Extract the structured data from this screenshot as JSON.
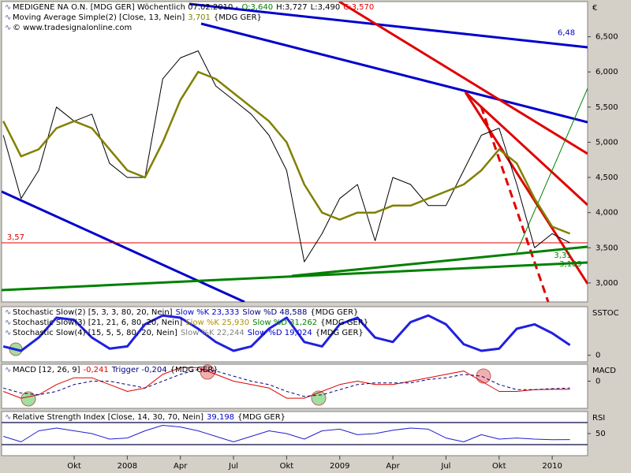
{
  "chart_data": [
    {
      "type": "line",
      "legend_lines": [
        [
          {
            "text": "MEDIGENE NA O.N. [MDG GER]  Wöchentlich 07.02.2010 -",
            "color": "#000000"
          },
          {
            "text": "O:3,640",
            "color": "#008000"
          },
          {
            "text": "H:3,727",
            "color": "#000000"
          },
          {
            "text": "L:3,490",
            "color": "#000000"
          },
          {
            "text": "C:3,570",
            "color": "#e00000"
          }
        ],
        [
          {
            "text": "Moving Average Simple(2) [Close, 13, Nein]",
            "color": "#000000"
          },
          {
            "text": "3,701",
            "color": "#808000"
          },
          {
            "text": "{MDG GER}",
            "color": "#000000"
          }
        ],
        [
          {
            "text": "© www.tradesignalonline.com",
            "color": "#000000"
          }
        ]
      ],
      "axis_label": "€",
      "x": [
        -4,
        -3,
        -2,
        -1,
        0,
        1,
        2,
        3,
        4,
        5,
        6,
        7,
        8,
        9,
        10,
        11,
        12,
        13,
        14,
        15,
        16,
        17,
        18,
        19,
        20,
        21,
        22,
        23,
        24,
        25,
        26,
        27,
        28
      ],
      "xlim": [
        -4.1,
        29.0
      ],
      "xticks": [
        {
          "value": 0,
          "label": "Okt"
        },
        {
          "value": 3,
          "label": "2008"
        },
        {
          "value": 6,
          "label": "Apr"
        },
        {
          "value": 9,
          "label": "Jul"
        },
        {
          "value": 12,
          "label": "Okt"
        },
        {
          "value": 15,
          "label": "2009"
        },
        {
          "value": 18,
          "label": "Apr"
        },
        {
          "value": 21,
          "label": "Jul"
        },
        {
          "value": 24,
          "label": "Okt"
        },
        {
          "value": 27,
          "label": "2010"
        }
      ],
      "ylim": [
        2.73,
        7.0
      ],
      "yticks": [
        {
          "value": 3.0,
          "label": "3,000"
        },
        {
          "value": 3.5,
          "label": "3,500"
        },
        {
          "value": 4.0,
          "label": "4,000"
        },
        {
          "value": 4.5,
          "label": "4,500"
        },
        {
          "value": 5.0,
          "label": "5,000"
        },
        {
          "value": 5.5,
          "label": "5,500"
        },
        {
          "value": 6.0,
          "label": "6,000"
        },
        {
          "value": 6.5,
          "label": "6,500"
        }
      ],
      "series": [
        {
          "name": "Close",
          "color": "#000000",
          "width": 1,
          "values": [
            5.1,
            4.2,
            4.6,
            5.5,
            5.3,
            5.4,
            4.7,
            4.5,
            4.5,
            5.9,
            6.2,
            6.3,
            5.8,
            5.6,
            5.4,
            5.1,
            4.6,
            3.3,
            3.7,
            4.2,
            4.4,
            3.6,
            4.5,
            4.4,
            4.1,
            4.1,
            4.6,
            5.1,
            5.2,
            4.4,
            3.5,
            3.7,
            3.57
          ]
        },
        {
          "name": "Moving Average Simple(2)",
          "color": "#808000",
          "width": 2.5,
          "values": [
            5.3,
            4.8,
            4.9,
            5.2,
            5.3,
            5.2,
            4.9,
            4.6,
            4.5,
            5.0,
            5.6,
            6.0,
            5.9,
            5.7,
            5.5,
            5.3,
            5.0,
            4.4,
            4.0,
            3.9,
            4.0,
            4.0,
            4.1,
            4.1,
            4.2,
            4.3,
            4.4,
            4.6,
            4.9,
            4.7,
            4.2,
            3.8,
            3.7
          ]
        }
      ],
      "annotations": [
        {
          "label": "6,48",
          "value": 6.48,
          "x": 27.3,
          "color": "#0000cc"
        },
        {
          "label": "3,57",
          "value": 3.57,
          "x": -3.8,
          "color": "#e00000",
          "hline": true
        },
        {
          "label": "3,31",
          "value": 3.31,
          "x": 27.1,
          "color": "#008000"
        },
        {
          "label": "3,189",
          "value": 3.189,
          "x": 27.4,
          "color": "#008000"
        }
      ]
    },
    {
      "type": "line",
      "legend_lines": [
        [
          {
            "text": "Stochastic Slow(2) [5, 3, 3, 80, 20, Nein]",
            "color": "#000000"
          },
          {
            "text": "Slow %K 23,333",
            "color": "#0000cc"
          },
          {
            "text": "Slow %D 48,588",
            "color": "#000080"
          },
          {
            "text": "{MDG GER}",
            "color": "#000000"
          }
        ],
        [
          {
            "text": "Stochastic Slow(3) [21, 21, 6, 80, 20, Nein]",
            "color": "#000000"
          },
          {
            "text": "Slow %K 25,930",
            "color": "#b09000"
          },
          {
            "text": "Slow %D 31,262",
            "color": "#008000"
          },
          {
            "text": "{MDG GER}",
            "color": "#000000"
          }
        ],
        [
          {
            "text": "Stochastic Slow(4) [15, 5, 5, 80, 20, Nein]",
            "color": "#000000"
          },
          {
            "text": "Slow %K 22,244",
            "color": "#808080"
          },
          {
            "text": "Slow %D 19,024",
            "color": "#0000cc"
          },
          {
            "text": "{MDG GER}",
            "color": "#000000"
          }
        ]
      ],
      "axis_label": "SSTOC",
      "ylim": [
        -15,
        110
      ],
      "yticks": [
        0
      ],
      "series": [
        {
          "name": "Slow %K",
          "color": "#2020e0",
          "width": 3,
          "values": [
            20,
            10,
            40,
            85,
            80,
            40,
            15,
            20,
            70,
            90,
            85,
            60,
            30,
            10,
            20,
            60,
            85,
            30,
            20,
            70,
            85,
            40,
            30,
            75,
            90,
            70,
            25,
            10,
            15,
            60,
            70,
            50,
            23
          ]
        }
      ]
    },
    {
      "type": "line",
      "legend_lines": [
        [
          {
            "text": "MACD [12, 26, 9]",
            "color": "#000000"
          },
          {
            "text": "-0,241",
            "color": "#e00000"
          },
          {
            "text": "Trigger -0,204",
            "color": "#000080"
          },
          {
            "text": "{MDG GER}",
            "color": "#000000"
          }
        ]
      ],
      "axis_label": "MACD",
      "ylim": [
        -0.8,
        0.5
      ],
      "yticks": [
        0
      ],
      "series": [
        {
          "name": "MACD",
          "color": "#e00000",
          "width": 1,
          "values": [
            -0.3,
            -0.5,
            -0.4,
            -0.1,
            0.1,
            0.1,
            -0.1,
            -0.3,
            -0.2,
            0.2,
            0.4,
            0.4,
            0.2,
            0.0,
            -0.1,
            -0.2,
            -0.5,
            -0.5,
            -0.3,
            -0.1,
            0.0,
            -0.1,
            -0.1,
            0.0,
            0.1,
            0.2,
            0.3,
            0.0,
            -0.3,
            -0.3,
            -0.25,
            -0.24,
            -0.241
          ]
        },
        {
          "name": "Trigger",
          "color": "#000080",
          "width": 1,
          "dash": true,
          "values": [
            -0.2,
            -0.35,
            -0.4,
            -0.3,
            -0.1,
            0.0,
            0.0,
            -0.1,
            -0.2,
            0.0,
            0.2,
            0.35,
            0.3,
            0.15,
            0.0,
            -0.1,
            -0.3,
            -0.45,
            -0.4,
            -0.25,
            -0.1,
            -0.05,
            -0.05,
            -0.05,
            0.05,
            0.1,
            0.2,
            0.15,
            -0.1,
            -0.25,
            -0.25,
            -0.22,
            -0.204
          ]
        }
      ]
    },
    {
      "type": "line",
      "legend_lines": [
        [
          {
            "text": "Relative Strength Index [Close, 14, 30, 70, Nein]",
            "color": "#000000"
          },
          {
            "text": "39,198",
            "color": "#0000cc"
          },
          {
            "text": "{MDG GER}",
            "color": "#000000"
          }
        ]
      ],
      "axis_label": "RSI",
      "ylim": [
        10,
        90
      ],
      "yticks": [
        50
      ],
      "ref_lines": [
        30,
        70
      ],
      "series": [
        {
          "name": "RSI",
          "color": "#2020d0",
          "width": 1,
          "values": [
            45,
            35,
            55,
            60,
            55,
            50,
            40,
            42,
            55,
            65,
            62,
            55,
            45,
            35,
            45,
            55,
            50,
            40,
            55,
            58,
            48,
            50,
            56,
            60,
            58,
            42,
            35,
            48,
            40,
            42,
            40,
            39,
            39.198
          ]
        }
      ]
    }
  ]
}
